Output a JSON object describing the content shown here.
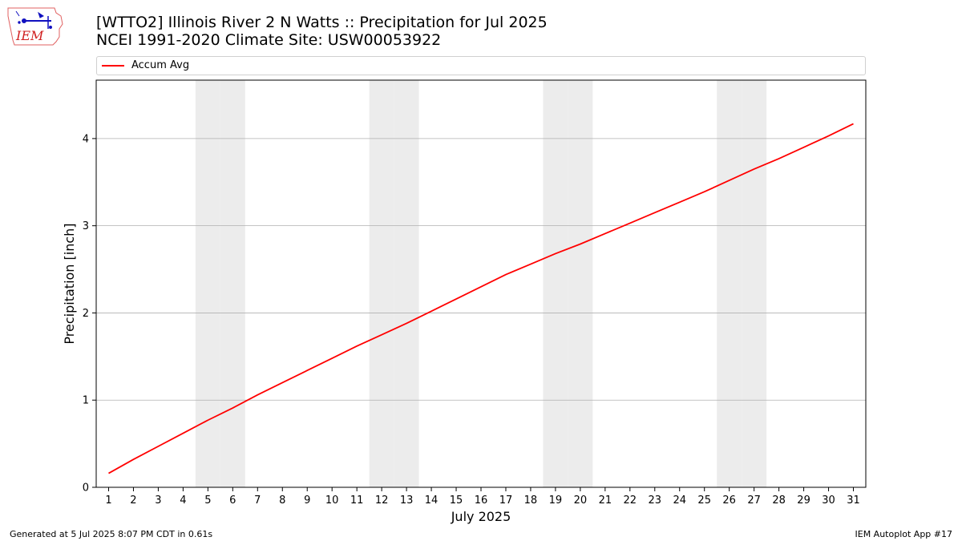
{
  "logo": {
    "text": "IEM"
  },
  "title": {
    "line1": "[WTTO2] Illinois River 2 N Watts :: Precipitation for Jul 2025",
    "line2": "NCEI 1991-2020 Climate Site: USW00053922"
  },
  "footer": {
    "left": "Generated at 5 Jul 2025 8:07 PM CDT in 0.61s",
    "right": "IEM Autoplot App #17"
  },
  "colors": {
    "series": "#ff0000",
    "weekend_band": "#ececec",
    "grid": "#b0b0b0"
  },
  "chart_data": {
    "type": "line",
    "xlabel": "July 2025",
    "ylabel": "Precipitation [inch]",
    "x": [
      1,
      2,
      3,
      4,
      5,
      6,
      7,
      8,
      9,
      10,
      11,
      12,
      13,
      14,
      15,
      16,
      17,
      18,
      19,
      20,
      21,
      22,
      23,
      24,
      25,
      26,
      27,
      28,
      29,
      30,
      31
    ],
    "xlim": [
      0.5,
      31.5
    ],
    "ylim": [
      0,
      4.67
    ],
    "yticks": [
      0,
      1,
      2,
      3,
      4
    ],
    "grid": "y-major",
    "legend_placement": "top",
    "weekend_days": [
      5,
      6,
      12,
      13,
      19,
      20,
      26,
      27
    ],
    "series": [
      {
        "name": "Accum Avg",
        "color": "#ff0000",
        "values": [
          0.16,
          0.32,
          0.47,
          0.62,
          0.77,
          0.91,
          1.06,
          1.2,
          1.34,
          1.48,
          1.62,
          1.75,
          1.88,
          2.02,
          2.16,
          2.3,
          2.44,
          2.56,
          2.68,
          2.79,
          2.91,
          3.03,
          3.15,
          3.27,
          3.39,
          3.52,
          3.65,
          3.77,
          3.9,
          4.03,
          4.17
        ]
      }
    ]
  }
}
